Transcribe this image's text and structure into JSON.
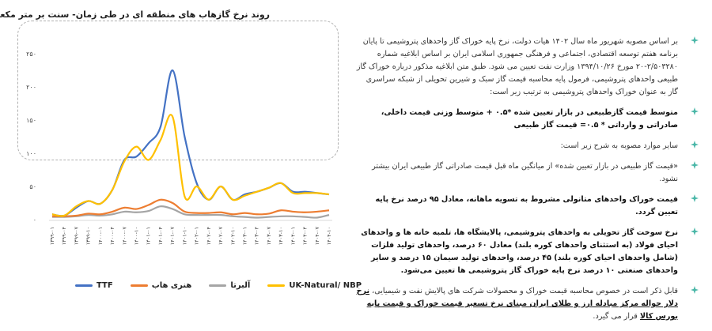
{
  "chart": {
    "title": "روند نرخ گازهاب های منطقه ای در طی زمان- سنت بر متر مکعب",
    "legend": [
      {
        "label": "TTF",
        "color": "#4472C4"
      },
      {
        "label": "هنری هاب",
        "color": "#ED7D31"
      },
      {
        "label": "آلبرتا",
        "color": "#A5A5A5"
      },
      {
        "label": "UK-Natural/ NBP",
        "color": "#FFC000"
      }
    ]
  },
  "chart_data": {
    "type": "line",
    "title": "روند نرخ گازهاب های منطقه ای در طی زمان- سنت بر متر مکعب",
    "xlabel": "",
    "ylabel": "سنت بر متر مکعب",
    "ylim": [
      0,
      250
    ],
    "yticks": [
      "۰",
      "۵۰",
      "۱۰۰",
      "۱۵۰",
      "۲۰۰",
      "۲۵۰"
    ],
    "grid": false,
    "legend_position": "bottom",
    "categories": [
      "۱۳۹۹-۰۱",
      "۱۳۹۹-۰۴",
      "۱۳۹۹-۰۷",
      "۱۳۹۹-۱۰",
      "۱۴۰۰-۰۱",
      "۱۴۰۰-۰۴",
      "۱۴۰۰-۰۷",
      "۱۴۰۰-۱۰",
      "۱۴۰۱-۰۱",
      "۱۴۰۱-۰۴",
      "۱۴۰۱-۰۷",
      "۱۴۰۱-۱۰",
      "۱۴۰۲-۰۱",
      "۱۴۰۲-۰۴",
      "۱۴۰۲-۰۷",
      "۱۴۰۲-۱۰",
      "۱۴۰۳-۰۱",
      "۱۴۰۳-۰۴",
      "۱۴۰۳-۰۷",
      "۱۴۰۳-۱۰",
      "۱۴۰۴-۰۱",
      "۱۴۰۴-۰۴",
      "۱۴۰۴-۰۷",
      "۱۴۰۴-۱۰"
    ],
    "series": [
      {
        "name": "TTF",
        "values": [
          8,
          6,
          18,
          28,
          24,
          45,
          90,
          95,
          115,
          140,
          225,
          125,
          55,
          30,
          50,
          30,
          38,
          42,
          48,
          55,
          42,
          42,
          40,
          38
        ]
      },
      {
        "name": "هنری هاب",
        "values": [
          5,
          5,
          6,
          9,
          8,
          12,
          18,
          16,
          22,
          30,
          25,
          12,
          10,
          10,
          11,
          8,
          10,
          8,
          9,
          14,
          12,
          11,
          12,
          14
        ]
      },
      {
        "name": "آلبرتا",
        "values": [
          4,
          4,
          5,
          7,
          6,
          8,
          12,
          11,
          13,
          20,
          16,
          8,
          7,
          7,
          7,
          5,
          4,
          3,
          4,
          5,
          5,
          4,
          3,
          7
        ]
      },
      {
        "name": "UK-Natural/ NBP",
        "values": [
          8,
          6,
          20,
          28,
          24,
          45,
          88,
          110,
          90,
          120,
          155,
          35,
          50,
          30,
          50,
          30,
          36,
          42,
          48,
          55,
          40,
          40,
          40,
          38
        ]
      }
    ]
  },
  "text": {
    "bullets": [
      {
        "text": "بر اساس مصوبه شهریور ماه سال ۱۴۰۲ هیات دولت، نرخ پایه خوراک گاز واحدهای پتروشیمی تا پایان برنامه هفتم توسعه اقتصادی، اجتماعی و فرهنگی جمهوری اسلامی ایران بر اساس ابلاغیه شماره ۲/۵۰۳۲۸۰-۲۰ مورخ ۱۳۹۴/۱۰/۲۶ وزارت نفت تعیین می شود. طبق متن ابلاغیه مذکور درباره خوراک گاز طبیعی واحدهای پتروشیمی، فرمول پایه محاسبه قیمت گاز سبک و شیرین تحویلی از شبکه سراسری گاز به عنوان خوراک واحدهای پتروشیمی به ترتیب زیر است:",
        "bold": false
      },
      {
        "text": "متوسط قیمت گازطبیعی در بازار تعیین شده *۰.۵ + متوسط وزنی قیمت داخلی، صادراتی و وارداتی * ۰.۵= قیمت گاز طبیعی",
        "bold": true
      },
      {
        "text": "سایر موارد مصوبه به شرح زیر است:",
        "bold": false
      },
      {
        "text": "«قیمت گاز طبیعی در بازار تعیین شده» از میانگین ماه قبل قیمت صادراتی گاز طبیعی ایران بیشتر نشود.",
        "bold": false
      },
      {
        "text": "قیمت خوراک واحدهای متانولی مشروط به تسویه ماهانه، معادل ۹۵ درصد نرخ پایه تعیین گردد.",
        "bold": true
      },
      {
        "text": "نرخ سوخت گاز تحویلی به واحدهای پتروشیمی، پالایشگاه ها، تلمبه خانه ها و واحدهای احیای فولاد (به استثنای واحدهای کوره بلند) معادل ۶۰ درصد، واحدهای تولید فلزات (شامل واحدهای احیای کوره بلند) ۴۵ درصد، واحدهای تولید سیمان ۱۵ درصد و سایر واحدهای صنعتی ۱۰ درصد نرخ پایه خوراک گاز پتروشیمی ها تعیین می‌شود.",
        "bold": true
      }
    ],
    "last": {
      "prefix": "قابل ذکر است در خصوص محاسبه قیمت خوراک و محصولات شرکت های پالایش نفت و شیمیایی، ",
      "underlined": "نرخ دلار حواله مرکز مبادله ارز و طلای ایران مبنای نرخ تسعیر قیمت خوراک و قیمت پایه بورس کالا",
      "suffix": " قرار می گیرد."
    },
    "bullet_color": "#4BB7A8"
  }
}
